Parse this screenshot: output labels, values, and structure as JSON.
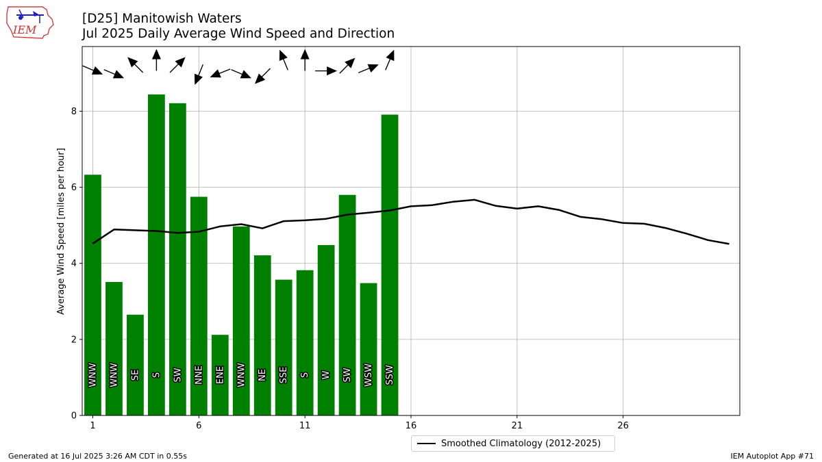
{
  "header": {
    "title": "[D25] Manitowish Waters",
    "subtitle": "Jul 2025 Daily Average Wind Speed and Direction",
    "logo_text": "IEM"
  },
  "footer": {
    "left": "Generated at 16 Jul 2025 3:26 AM CDT in 0.55s",
    "right": "IEM Autoplot App #71"
  },
  "legend": {
    "label": "Smoothed Climatology (2012-2025)"
  },
  "colors": {
    "bar": "#008000",
    "climatology": "#000000",
    "grid": "#b0b0b0"
  },
  "chart_data": {
    "type": "bar",
    "ylabel": "Average Wind Speed [miles per hour]",
    "xlabel": "",
    "xlim": [
      0.5,
      31.5
    ],
    "ylim": [
      0,
      9.7
    ],
    "x_ticks": [
      1,
      6,
      11,
      16,
      21,
      26
    ],
    "y_ticks": [
      0,
      2,
      4,
      6,
      8
    ],
    "grid": true,
    "legend_position": "bottom-center",
    "days": [
      1,
      2,
      3,
      4,
      5,
      6,
      7,
      8,
      9,
      10,
      11,
      12,
      13,
      14,
      15
    ],
    "values": [
      6.33,
      3.51,
      2.65,
      8.44,
      8.21,
      5.75,
      2.12,
      4.97,
      4.21,
      3.57,
      3.82,
      4.48,
      5.8,
      3.48,
      7.91
    ],
    "directions": [
      "WNW",
      "WNW",
      "SE",
      "S",
      "SW",
      "NNE",
      "ENE",
      "WNW",
      "NE",
      "SSE",
      "S",
      "W",
      "SW",
      "WSW",
      "SSW"
    ],
    "wind_from_degrees": [
      293,
      293,
      135,
      180,
      225,
      22,
      68,
      293,
      45,
      158,
      180,
      270,
      225,
      248,
      203
    ],
    "series": [
      {
        "name": "Smoothed Climatology (2012-2025)",
        "type": "line",
        "x": [
          1,
          2,
          3,
          4,
          5,
          6,
          7,
          8,
          9,
          10,
          11,
          12,
          13,
          14,
          15,
          16,
          17,
          18,
          19,
          20,
          21,
          22,
          23,
          24,
          25,
          26,
          27,
          28,
          29,
          30,
          31
        ],
        "values": [
          4.52,
          4.89,
          4.87,
          4.85,
          4.8,
          4.83,
          4.97,
          5.03,
          4.92,
          5.11,
          5.13,
          5.17,
          5.28,
          5.33,
          5.39,
          5.5,
          5.53,
          5.62,
          5.67,
          5.51,
          5.44,
          5.5,
          5.4,
          5.22,
          5.16,
          5.06,
          5.04,
          4.93,
          4.78,
          4.61,
          4.51
        ]
      }
    ]
  }
}
